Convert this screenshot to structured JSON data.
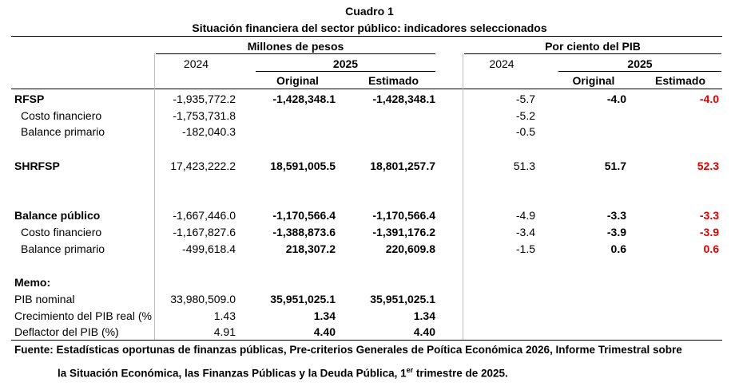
{
  "title": "Cuadro 1",
  "subtitle": "Situación financiera del sector público: indicadores seleccionados",
  "group_headers": {
    "millones": "Millones de pesos",
    "pib": "Por ciento del PIB"
  },
  "year_2024": "2024",
  "year_2025": "2025",
  "col_original": "Original",
  "col_estimado": "Estimado",
  "colors": {
    "highlight": "#e00000",
    "text": "#000000"
  },
  "rows": {
    "rfsp": {
      "label": "RFSP",
      "v2024": "-1,935,772.2",
      "orig": "-1,428,348.1",
      "est": "-1,428,348.1",
      "p2024": "-5.7",
      "porig": "-4.0",
      "pest": "-4.0"
    },
    "rfsp_costo": {
      "label": "Costo financiero",
      "v2024": "-1,753,731.8",
      "p2024": "-5.2"
    },
    "rfsp_balance": {
      "label": "Balance primario",
      "v2024": "-182,040.3",
      "p2024": "-0.5"
    },
    "shrfsp": {
      "label": "SHRFSP",
      "v2024": "17,423,222.2",
      "orig": "18,591,005.5",
      "est": "18,801,257.7",
      "p2024": "51.3",
      "porig": "51.7",
      "pest": "52.3"
    },
    "bp": {
      "label": "Balance público",
      "v2024": "-1,667,446.0",
      "orig": "-1,170,566.4",
      "est": "-1,170,566.4",
      "p2024": "-4.9",
      "porig": "-3.3",
      "pest": "-3.3"
    },
    "bp_costo": {
      "label": "Costo financiero",
      "v2024": "-1,167,827.6",
      "orig": "-1,388,873.6",
      "est": "-1,391,176.2",
      "p2024": "-3.4",
      "porig": "-3.9",
      "pest": "-3.9"
    },
    "bp_balance": {
      "label": "Balance primario",
      "v2024": "-499,618.4",
      "orig": "218,307.2",
      "est": "220,609.8",
      "p2024": "-1.5",
      "porig": "0.6",
      "pest": "0.6"
    }
  },
  "memo": {
    "label": "Memo:",
    "pib_nominal": {
      "label": "PIB nominal",
      "v2024": "33,980,509.0",
      "orig": "35,951,025.1",
      "est": "35,951,025.1"
    },
    "crecimiento": {
      "label": "Crecimiento del PIB real (%",
      "v2024": "1.43",
      "orig": "1.34",
      "est": "1.34"
    },
    "deflactor": {
      "label": "Deflactor del PIB (%)",
      "v2024": "4.91",
      "orig": "4.40",
      "est": "4.40"
    }
  },
  "footnote": {
    "line1": "Fuente: Estadísticas oportunas de finanzas públicas, Pre-criterios Generales de Poítica Económica 2026, Informe Trimestral sobre",
    "line2a": "la Situación Económica, las Finanzas Públicas y la Deuda Pública, 1",
    "line2_sup": "er",
    "line2b": " trimestre de 2025."
  }
}
